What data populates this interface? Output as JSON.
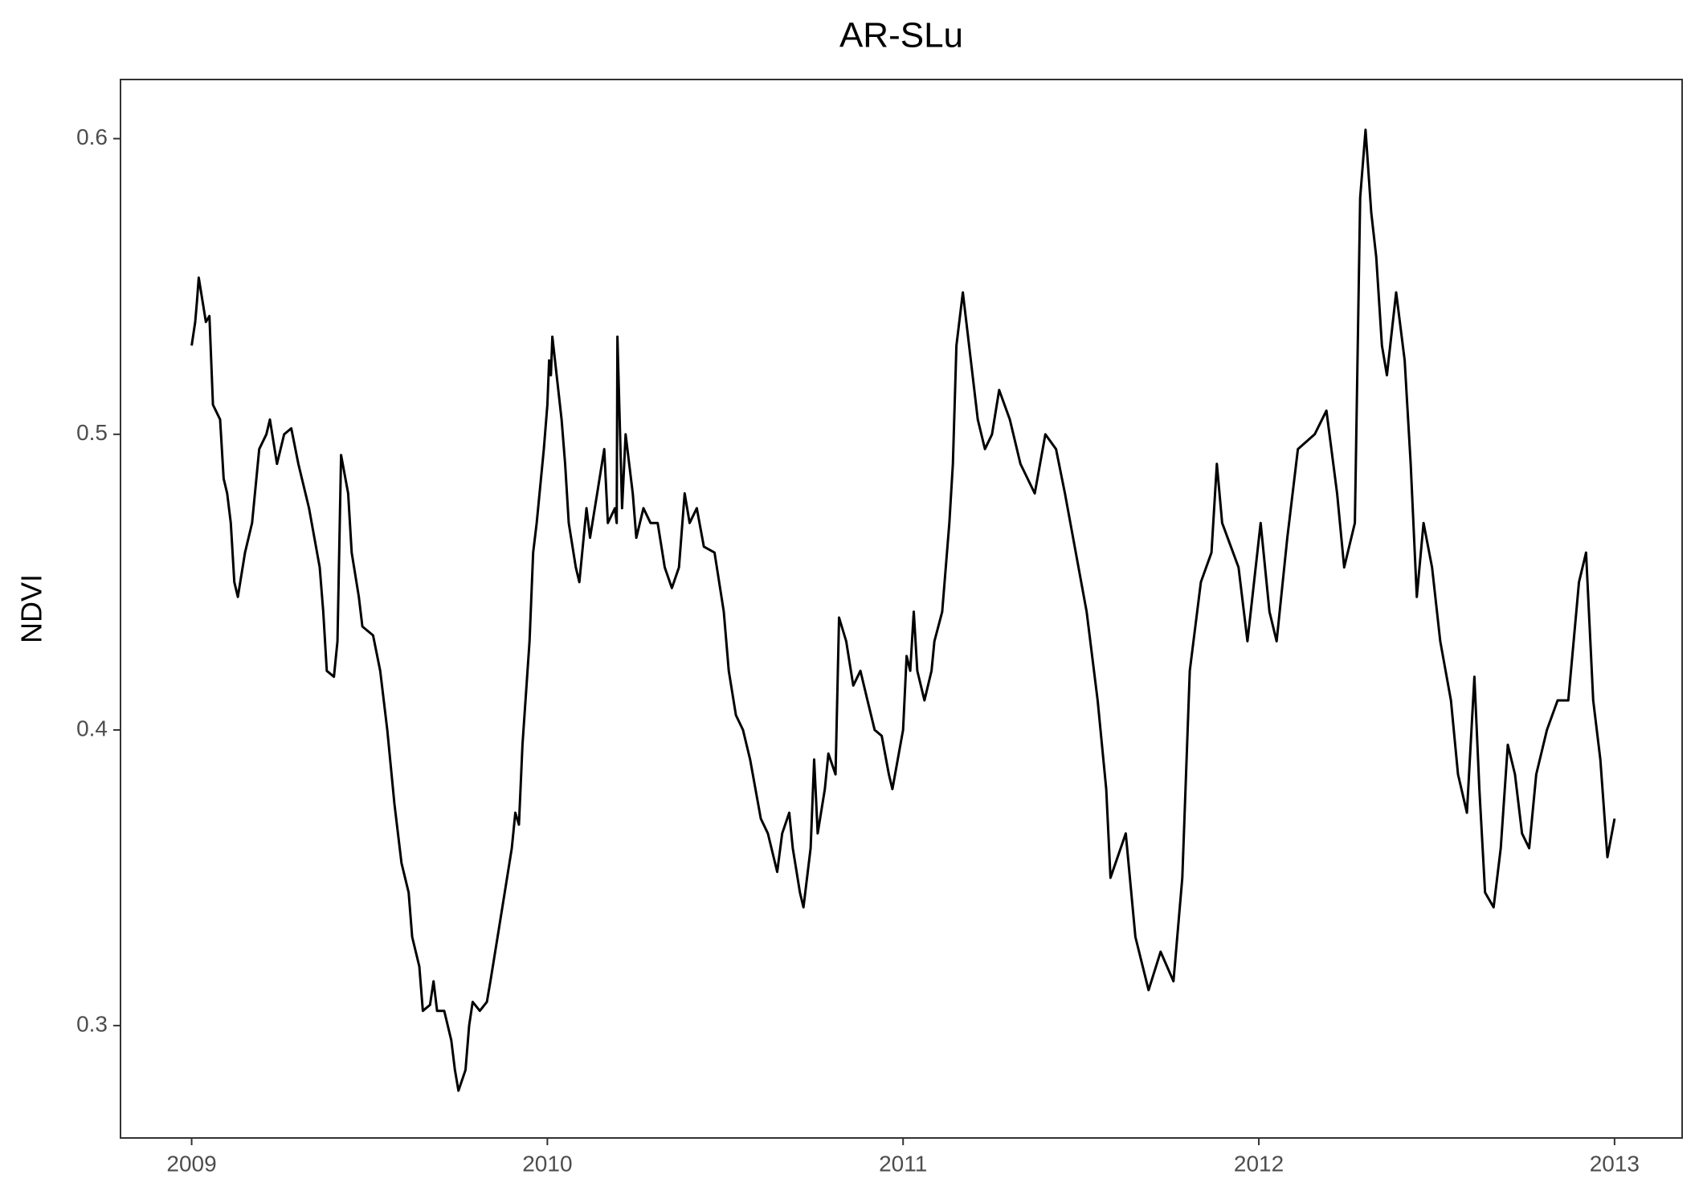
{
  "chart_data": {
    "type": "line",
    "title": "AR-SLu",
    "y_label": "NDVI",
    "x": [
      2009.0,
      2009.01,
      2009.015,
      2009.02,
      2009.04,
      2009.05,
      2009.06,
      2009.08,
      2009.09,
      2009.1,
      2009.11,
      2009.12,
      2009.13,
      2009.15,
      2009.17,
      2009.19,
      2009.21,
      2009.22,
      2009.24,
      2009.26,
      2009.28,
      2009.3,
      2009.33,
      2009.36,
      2009.37,
      2009.38,
      2009.4,
      2009.41,
      2009.42,
      2009.44,
      2009.45,
      2009.47,
      2009.48,
      2009.51,
      2009.53,
      2009.55,
      2009.57,
      2009.59,
      2009.61,
      2009.62,
      2009.64,
      2009.65,
      2009.67,
      2009.68,
      2009.69,
      2009.71,
      2009.73,
      2009.74,
      2009.75,
      2009.77,
      2009.78,
      2009.79,
      2009.81,
      2009.83,
      2009.84,
      2009.86,
      2009.88,
      2009.9,
      2009.91,
      2009.92,
      2009.93,
      2009.95,
      2009.96,
      2009.97,
      2009.99,
      2010.0,
      2010.005,
      2010.01,
      2010.014,
      2010.04,
      2010.05,
      2010.06,
      2010.08,
      2010.09,
      2010.11,
      2010.12,
      2010.14,
      2010.16,
      2010.17,
      2010.19,
      2010.195,
      2010.197,
      2010.21,
      2010.22,
      2010.24,
      2010.25,
      2010.27,
      2010.29,
      2010.31,
      2010.33,
      2010.35,
      2010.37,
      2010.386,
      2010.4,
      2010.42,
      2010.44,
      2010.47,
      2010.496,
      2010.51,
      2010.53,
      2010.55,
      2010.57,
      2010.6,
      2010.62,
      2010.646,
      2010.66,
      2010.68,
      2010.69,
      2010.71,
      2010.72,
      2010.74,
      2010.75,
      2010.76,
      2010.78,
      2010.79,
      2010.81,
      2010.82,
      2010.84,
      2010.86,
      2010.88,
      2010.9,
      2010.92,
      2010.94,
      2010.96,
      2010.97,
      2011.0,
      2011.01,
      2011.02,
      2011.03,
      2011.04,
      2011.06,
      2011.08,
      2011.088,
      2011.11,
      2011.13,
      2011.14,
      2011.15,
      2011.168,
      2011.21,
      2011.23,
      2011.25,
      2011.27,
      2011.3,
      2011.33,
      2011.37,
      2011.4,
      2011.43,
      2011.455,
      2011.516,
      2011.547,
      2011.571,
      2011.583,
      2011.626,
      2011.653,
      2011.69,
      2011.724,
      2011.76,
      2011.785,
      2011.806,
      2011.837,
      2011.867,
      2011.882,
      2011.897,
      2011.943,
      2011.968,
      2012.005,
      2012.03,
      2012.05,
      2012.08,
      2012.11,
      2012.157,
      2012.19,
      2012.22,
      2012.24,
      2012.27,
      2012.285,
      2012.3,
      2012.316,
      2012.33,
      2012.346,
      2012.36,
      2012.386,
      2012.41,
      2012.427,
      2012.444,
      2012.463,
      2012.487,
      2012.51,
      2012.54,
      2012.56,
      2012.585,
      2012.606,
      2012.62,
      2012.636,
      2012.66,
      2012.68,
      2012.7,
      2012.72,
      2012.74,
      2012.76,
      2012.78,
      2012.81,
      2012.84,
      2012.87,
      2012.9,
      2012.92,
      2012.94,
      2012.96,
      2012.98,
      2013.0
    ],
    "series": [
      {
        "name": "NDVI",
        "color": "#000000",
        "values": [
          0.53,
          0.538,
          0.545,
          0.553,
          0.538,
          0.54,
          0.51,
          0.505,
          0.485,
          0.48,
          0.47,
          0.45,
          0.445,
          0.46,
          0.47,
          0.495,
          0.5,
          0.505,
          0.49,
          0.5,
          0.502,
          0.49,
          0.475,
          0.455,
          0.44,
          0.42,
          0.418,
          0.43,
          0.493,
          0.48,
          0.46,
          0.445,
          0.435,
          0.432,
          0.42,
          0.4,
          0.375,
          0.355,
          0.345,
          0.33,
          0.32,
          0.305,
          0.307,
          0.315,
          0.305,
          0.305,
          0.295,
          0.285,
          0.278,
          0.285,
          0.3,
          0.308,
          0.305,
          0.308,
          0.315,
          0.33,
          0.345,
          0.36,
          0.372,
          0.368,
          0.395,
          0.43,
          0.46,
          0.47,
          0.495,
          0.51,
          0.525,
          0.52,
          0.533,
          0.505,
          0.49,
          0.47,
          0.455,
          0.45,
          0.475,
          0.465,
          0.48,
          0.495,
          0.47,
          0.475,
          0.47,
          0.533,
          0.475,
          0.5,
          0.48,
          0.465,
          0.475,
          0.47,
          0.47,
          0.455,
          0.448,
          0.455,
          0.48,
          0.47,
          0.475,
          0.462,
          0.46,
          0.44,
          0.42,
          0.405,
          0.4,
          0.39,
          0.37,
          0.365,
          0.352,
          0.365,
          0.372,
          0.36,
          0.345,
          0.34,
          0.36,
          0.39,
          0.365,
          0.38,
          0.392,
          0.385,
          0.438,
          0.43,
          0.415,
          0.42,
          0.41,
          0.4,
          0.398,
          0.385,
          0.38,
          0.4,
          0.425,
          0.42,
          0.44,
          0.42,
          0.41,
          0.42,
          0.43,
          0.44,
          0.47,
          0.49,
          0.53,
          0.548,
          0.505,
          0.495,
          0.5,
          0.515,
          0.505,
          0.49,
          0.48,
          0.5,
          0.495,
          0.48,
          0.44,
          0.41,
          0.38,
          0.35,
          0.365,
          0.33,
          0.312,
          0.325,
          0.315,
          0.35,
          0.42,
          0.45,
          0.46,
          0.49,
          0.47,
          0.455,
          0.43,
          0.47,
          0.44,
          0.43,
          0.465,
          0.495,
          0.5,
          0.508,
          0.48,
          0.455,
          0.47,
          0.58,
          0.603,
          0.575,
          0.56,
          0.53,
          0.52,
          0.548,
          0.525,
          0.49,
          0.445,
          0.47,
          0.455,
          0.43,
          0.41,
          0.385,
          0.372,
          0.418,
          0.38,
          0.345,
          0.34,
          0.36,
          0.395,
          0.385,
          0.365,
          0.36,
          0.385,
          0.4,
          0.41,
          0.41,
          0.45,
          0.46,
          0.41,
          0.39,
          0.357,
          0.37
        ]
      }
    ],
    "xlim": [
      2008.8,
      2013.19
    ],
    "xticks": [
      2009,
      2010,
      2011,
      2012,
      2013
    ],
    "ylim": [
      0.262,
      0.62
    ],
    "yticks": [
      0.3,
      0.4,
      0.5,
      0.6
    ]
  }
}
